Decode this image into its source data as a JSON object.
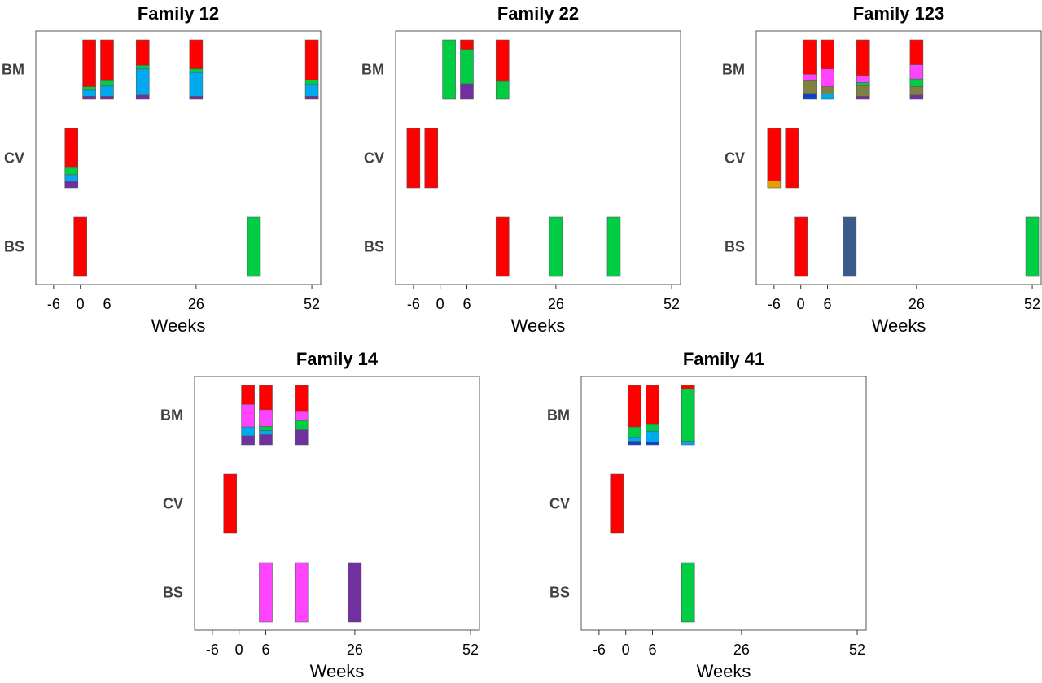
{
  "chart_data": [
    {
      "type": "bar",
      "title": "Family 12",
      "xlabel": "Weeks",
      "rows": [
        "BM",
        "CV",
        "BS"
      ],
      "xticks": [
        "-6",
        "0",
        "6",
        "26",
        "52"
      ],
      "xlim": [
        -10,
        54
      ],
      "bars": [
        {
          "row": "BM",
          "week": 2,
          "segments": [
            {
              "color": "#ff0000",
              "frac": 0.79
            },
            {
              "color": "#00cc44",
              "frac": 0.06
            },
            {
              "color": "#00aaee",
              "frac": 0.1
            },
            {
              "color": "#7030a0",
              "frac": 0.05
            }
          ]
        },
        {
          "row": "BM",
          "week": 6,
          "segments": [
            {
              "color": "#ff0000",
              "frac": 0.69
            },
            {
              "color": "#00cc44",
              "frac": 0.09
            },
            {
              "color": "#00aaee",
              "frac": 0.17
            },
            {
              "color": "#7030a0",
              "frac": 0.05
            }
          ]
        },
        {
          "row": "BM",
          "week": 14,
          "segments": [
            {
              "color": "#ff0000",
              "frac": 0.43
            },
            {
              "color": "#00cc44",
              "frac": 0.06
            },
            {
              "color": "#00aaee",
              "frac": 0.44
            },
            {
              "color": "#7030a0",
              "frac": 0.07
            }
          ]
        },
        {
          "row": "BM",
          "week": 26,
          "segments": [
            {
              "color": "#ff0000",
              "frac": 0.49
            },
            {
              "color": "#00cc44",
              "frac": 0.06
            },
            {
              "color": "#00aaee",
              "frac": 0.4
            },
            {
              "color": "#7030a0",
              "frac": 0.05
            }
          ]
        },
        {
          "row": "BM",
          "week": 52,
          "segments": [
            {
              "color": "#ff0000",
              "frac": 0.68
            },
            {
              "color": "#00cc44",
              "frac": 0.07
            },
            {
              "color": "#00aaee",
              "frac": 0.2
            },
            {
              "color": "#7030a0",
              "frac": 0.05
            }
          ]
        },
        {
          "row": "CV",
          "week": -2,
          "segments": [
            {
              "color": "#ff0000",
              "frac": 0.66
            },
            {
              "color": "#00cc44",
              "frac": 0.12
            },
            {
              "color": "#00aaee",
              "frac": 0.11
            },
            {
              "color": "#7030a0",
              "frac": 0.11
            }
          ]
        },
        {
          "row": "BS",
          "week": 0,
          "segments": [
            {
              "color": "#ff0000",
              "frac": 1.0
            }
          ]
        },
        {
          "row": "BS",
          "week": 39,
          "segments": [
            {
              "color": "#00cc44",
              "frac": 1.0
            }
          ]
        }
      ]
    },
    {
      "type": "bar",
      "title": "Family 22",
      "xlabel": "Weeks",
      "rows": [
        "BM",
        "CV",
        "BS"
      ],
      "xticks": [
        "-6",
        "0",
        "6",
        "26",
        "52"
      ],
      "xlim": [
        -10,
        54
      ],
      "bars": [
        {
          "row": "BM",
          "week": 2,
          "segments": [
            {
              "color": "#00cc44",
              "frac": 1.0
            }
          ]
        },
        {
          "row": "BM",
          "week": 6,
          "segments": [
            {
              "color": "#ff0000",
              "frac": 0.16
            },
            {
              "color": "#00cc44",
              "frac": 0.58
            },
            {
              "color": "#7030a0",
              "frac": 0.26
            }
          ]
        },
        {
          "row": "BM",
          "week": 14,
          "segments": [
            {
              "color": "#ff0000",
              "frac": 0.7
            },
            {
              "color": "#00cc44",
              "frac": 0.3
            }
          ]
        },
        {
          "row": "CV",
          "week": -6,
          "segments": [
            {
              "color": "#ff0000",
              "frac": 1.0
            }
          ]
        },
        {
          "row": "CV",
          "week": -2,
          "segments": [
            {
              "color": "#ff0000",
              "frac": 1.0
            }
          ]
        },
        {
          "row": "BS",
          "week": 14,
          "segments": [
            {
              "color": "#ff0000",
              "frac": 1.0
            }
          ]
        },
        {
          "row": "BS",
          "week": 26,
          "segments": [
            {
              "color": "#00cc44",
              "frac": 1.0
            }
          ]
        },
        {
          "row": "BS",
          "week": 39,
          "segments": [
            {
              "color": "#00cc44",
              "frac": 1.0
            }
          ]
        }
      ]
    },
    {
      "type": "bar",
      "title": "Family 123",
      "xlabel": "Weeks",
      "rows": [
        "BM",
        "CV",
        "BS"
      ],
      "xticks": [
        "-6",
        "0",
        "6",
        "26",
        "52"
      ],
      "xlim": [
        -10,
        54
      ],
      "bars": [
        {
          "row": "BM",
          "week": 2,
          "segments": [
            {
              "color": "#ff0000",
              "frac": 0.58
            },
            {
              "color": "#ff44ff",
              "frac": 0.11
            },
            {
              "color": "#808040",
              "frac": 0.21
            },
            {
              "color": "#1040d0",
              "frac": 0.1
            }
          ]
        },
        {
          "row": "BM",
          "week": 6,
          "segments": [
            {
              "color": "#ff0000",
              "frac": 0.49
            },
            {
              "color": "#ff44ff",
              "frac": 0.3
            },
            {
              "color": "#808040",
              "frac": 0.12
            },
            {
              "color": "#00aaee",
              "frac": 0.09
            }
          ]
        },
        {
          "row": "BM",
          "week": 14,
          "segments": [
            {
              "color": "#ff0000",
              "frac": 0.6
            },
            {
              "color": "#ff44ff",
              "frac": 0.12
            },
            {
              "color": "#00cc44",
              "frac": 0.05
            },
            {
              "color": "#808040",
              "frac": 0.18
            },
            {
              "color": "#7030a0",
              "frac": 0.05
            }
          ]
        },
        {
          "row": "BM",
          "week": 26,
          "segments": [
            {
              "color": "#ff0000",
              "frac": 0.42
            },
            {
              "color": "#ff44ff",
              "frac": 0.24
            },
            {
              "color": "#00cc44",
              "frac": 0.13
            },
            {
              "color": "#808040",
              "frac": 0.14
            },
            {
              "color": "#7030a0",
              "frac": 0.07
            }
          ]
        },
        {
          "row": "CV",
          "week": -6,
          "segments": [
            {
              "color": "#ff0000",
              "frac": 0.88
            },
            {
              "color": "#e0a000",
              "frac": 0.12
            }
          ]
        },
        {
          "row": "CV",
          "week": -2,
          "segments": [
            {
              "color": "#ff0000",
              "frac": 1.0
            }
          ]
        },
        {
          "row": "BS",
          "week": 0,
          "segments": [
            {
              "color": "#ff0000",
              "frac": 1.0
            }
          ]
        },
        {
          "row": "BS",
          "week": 11,
          "segments": [
            {
              "color": "#3a5a8c",
              "frac": 1.0
            }
          ]
        },
        {
          "row": "BS",
          "week": 52,
          "segments": [
            {
              "color": "#00cc44",
              "frac": 1.0
            }
          ]
        }
      ]
    },
    {
      "type": "bar",
      "title": "Family 14",
      "xlabel": "Weeks",
      "rows": [
        "BM",
        "CV",
        "BS"
      ],
      "xticks": [
        "-6",
        "0",
        "6",
        "26",
        "52"
      ],
      "xlim": [
        -10,
        54
      ],
      "bars": [
        {
          "row": "BM",
          "week": 2,
          "segments": [
            {
              "color": "#ff0000",
              "frac": 0.32
            },
            {
              "color": "#ff44ff",
              "frac": 0.38
            },
            {
              "color": "#00aaee",
              "frac": 0.15
            },
            {
              "color": "#7030a0",
              "frac": 0.15
            }
          ]
        },
        {
          "row": "BM",
          "week": 6,
          "segments": [
            {
              "color": "#ff0000",
              "frac": 0.41
            },
            {
              "color": "#ff44ff",
              "frac": 0.28
            },
            {
              "color": "#00cc44",
              "frac": 0.07
            },
            {
              "color": "#00aaee",
              "frac": 0.07
            },
            {
              "color": "#7030a0",
              "frac": 0.17
            }
          ]
        },
        {
          "row": "BM",
          "week": 14,
          "segments": [
            {
              "color": "#ff0000",
              "frac": 0.44
            },
            {
              "color": "#ff44ff",
              "frac": 0.15
            },
            {
              "color": "#00cc44",
              "frac": 0.16
            },
            {
              "color": "#7030a0",
              "frac": 0.25
            }
          ]
        },
        {
          "row": "CV",
          "week": -2,
          "segments": [
            {
              "color": "#ff0000",
              "frac": 1.0
            }
          ]
        },
        {
          "row": "BS",
          "week": 6,
          "segments": [
            {
              "color": "#ff44ff",
              "frac": 1.0
            }
          ]
        },
        {
          "row": "BS",
          "week": 14,
          "segments": [
            {
              "color": "#ff44ff",
              "frac": 1.0
            }
          ]
        },
        {
          "row": "BS",
          "week": 26,
          "segments": [
            {
              "color": "#7030a0",
              "frac": 1.0
            }
          ]
        }
      ]
    },
    {
      "type": "bar",
      "title": "Family 41",
      "xlabel": "Weeks",
      "rows": [
        "BM",
        "CV",
        "BS"
      ],
      "xticks": [
        "-6",
        "0",
        "6",
        "26",
        "52"
      ],
      "xlim": [
        -10,
        54
      ],
      "bars": [
        {
          "row": "BM",
          "week": 2,
          "segments": [
            {
              "color": "#ff0000",
              "frac": 0.7
            },
            {
              "color": "#00cc44",
              "frac": 0.18
            },
            {
              "color": "#00aaee",
              "frac": 0.06
            },
            {
              "color": "#1040d0",
              "frac": 0.06
            }
          ]
        },
        {
          "row": "BM",
          "week": 6,
          "segments": [
            {
              "color": "#ff0000",
              "frac": 0.66
            },
            {
              "color": "#00cc44",
              "frac": 0.11
            },
            {
              "color": "#00aaee",
              "frac": 0.18
            },
            {
              "color": "#1040d0",
              "frac": 0.05
            }
          ]
        },
        {
          "row": "BM",
          "week": 14,
          "segments": [
            {
              "color": "#ff0000",
              "frac": 0.06
            },
            {
              "color": "#00cc44",
              "frac": 0.88
            },
            {
              "color": "#00aaee",
              "frac": 0.06
            }
          ]
        },
        {
          "row": "CV",
          "week": -2,
          "segments": [
            {
              "color": "#ff0000",
              "frac": 1.0
            }
          ]
        },
        {
          "row": "BS",
          "week": 14,
          "segments": [
            {
              "color": "#00cc44",
              "frac": 1.0
            }
          ]
        }
      ]
    }
  ]
}
